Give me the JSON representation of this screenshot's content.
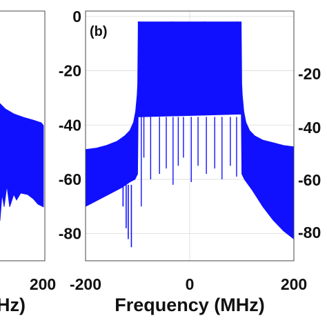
{
  "chart_data": [
    {
      "panel": "left (partially visible)",
      "type": "line",
      "x_ticks": [
        "200"
      ],
      "xlabel_fragment": "Hz)",
      "series_color": "#1010ff"
    },
    {
      "panel": "(b)",
      "type": "area",
      "panel_label": "(b)",
      "title": "",
      "xlabel": "Frequency (MHz)",
      "ylabel": "",
      "xlim": [
        -200,
        200
      ],
      "ylim": [
        -90,
        2
      ],
      "x_ticks": [
        "-200",
        "0",
        "200"
      ],
      "y_ticks": [
        "0",
        "-20",
        "-40",
        "-60",
        "-80"
      ],
      "x_tick_values": [
        -200,
        0,
        200
      ],
      "y_tick_values": [
        0,
        -20,
        -40,
        -60,
        -80
      ],
      "grid": true,
      "series_color": "#1010ff",
      "series": [
        {
          "name": "",
          "upper_envelope": {
            "x": [
              -200,
              -180,
              -160,
              -140,
              -125,
              -115,
              -108,
              -104,
              -101,
              -100,
              -99,
              99,
              100,
              101,
              104,
              108,
              115,
              125,
              140,
              160,
              180,
              200
            ],
            "y": [
              -49,
              -48.5,
              -47.5,
              -46,
              -44,
              -42,
              -39,
              -35,
              -29,
              -25,
              -2,
              -2,
              -25,
              -29,
              -35,
              -39,
              -42,
              -44,
              -45.5,
              -46.5,
              -47.5,
              -48
            ]
          },
          "lower_envelope": {
            "x": [
              -200,
              -170,
              -150,
              -130,
              -115,
              -105,
              -100,
              -99,
              99,
              100,
              105,
              120,
              140,
              160,
              180,
              200
            ],
            "y": [
              -70,
              -67,
              -65,
              -63,
              -61,
              -60,
              -58,
              -37,
              -36,
              -58,
              -60,
              -64,
              -70,
              -75,
              -79,
              -82
            ]
          },
          "deep_notches": [
            {
              "x": -93,
              "y": -70
            },
            {
              "x": -88,
              "y": -52
            },
            {
              "x": -75,
              "y": -60
            },
            {
              "x": -58,
              "y": -58
            },
            {
              "x": -45,
              "y": -56
            },
            {
              "x": -32,
              "y": -62
            },
            {
              "x": -22,
              "y": -55
            },
            {
              "x": -12,
              "y": -52
            },
            {
              "x": 3,
              "y": -61
            },
            {
              "x": 16,
              "y": -55
            },
            {
              "x": 32,
              "y": -58
            },
            {
              "x": 48,
              "y": -56
            },
            {
              "x": 62,
              "y": -60
            },
            {
              "x": 78,
              "y": -55
            },
            {
              "x": 90,
              "y": -59
            }
          ],
          "low_spikes": [
            {
              "x": -128,
              "y": -70
            },
            {
              "x": -122,
              "y": -78
            },
            {
              "x": -118,
              "y": -82
            },
            {
              "x": -112,
              "y": -85
            }
          ]
        }
      ]
    },
    {
      "panel": "right (partially visible)",
      "type": "line",
      "y_ticks": [
        "-20",
        "-40",
        "-60",
        "-80"
      ],
      "series_color": "#1010ff"
    }
  ]
}
